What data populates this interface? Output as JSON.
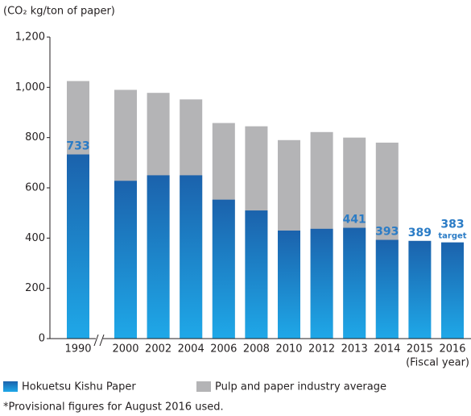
{
  "chart_data": {
    "type": "bar",
    "y_axis_label": "(CO₂ kg/ton of paper)",
    "x_axis_label": "(Fiscal year)",
    "categories": [
      "1990",
      "2000",
      "2002",
      "2004",
      "2006",
      "2008",
      "2010",
      "2012",
      "2013",
      "2014",
      "2015",
      "2016"
    ],
    "series": [
      {
        "name": "Pulp and paper industry average",
        "color": "#b4b4b6",
        "values": [
          1025,
          990,
          978,
          952,
          858,
          845,
          790,
          822,
          800,
          780,
          null,
          null
        ]
      },
      {
        "name": "Hokuetsu Kishu Paper",
        "color": "#1b62ac",
        "values": [
          733,
          628,
          650,
          650,
          553,
          510,
          430,
          437,
          441,
          393,
          389,
          383
        ],
        "value_labels": [
          733,
          null,
          null,
          null,
          null,
          null,
          null,
          null,
          441,
          393,
          389,
          383
        ]
      }
    ],
    "annotation": "target",
    "ylim": [
      0,
      1200
    ],
    "yticks": [
      0,
      200,
      400,
      600,
      800,
      {
        "value": 1000,
        "label": "1,000"
      },
      {
        "value": 1200,
        "label": "1,200"
      }
    ],
    "grid": false,
    "footnote": "*Provisional figures for August 2016 used."
  }
}
